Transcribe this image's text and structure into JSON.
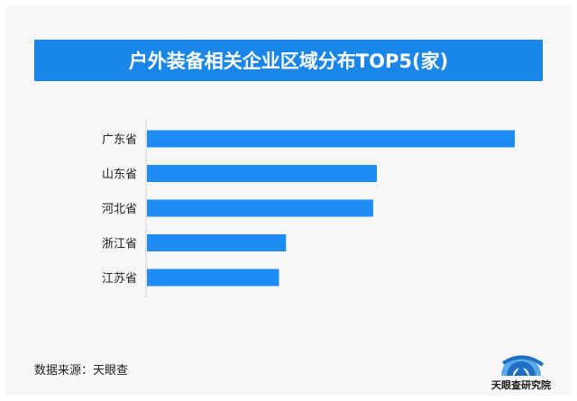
{
  "colors": {
    "banner": "#1a86ea",
    "bar": "#1e8cf6",
    "logo_blue": "#1f6fc4",
    "logo_light": "#5aa9ea"
  },
  "source_note": "数据来源：天眼查",
  "logo_text": "天眼查研究院",
  "chart_data": {
    "type": "bar",
    "orientation": "horizontal",
    "title": "户外装备相关企业区域分布TOP5(家)",
    "categories": [
      "广东省",
      "山东省",
      "河北省",
      "浙江省",
      "江苏省"
    ],
    "values": [
      1000,
      625,
      615,
      378,
      359
    ],
    "xlim": [
      0,
      1000
    ],
    "grid": false,
    "legend": "none"
  }
}
